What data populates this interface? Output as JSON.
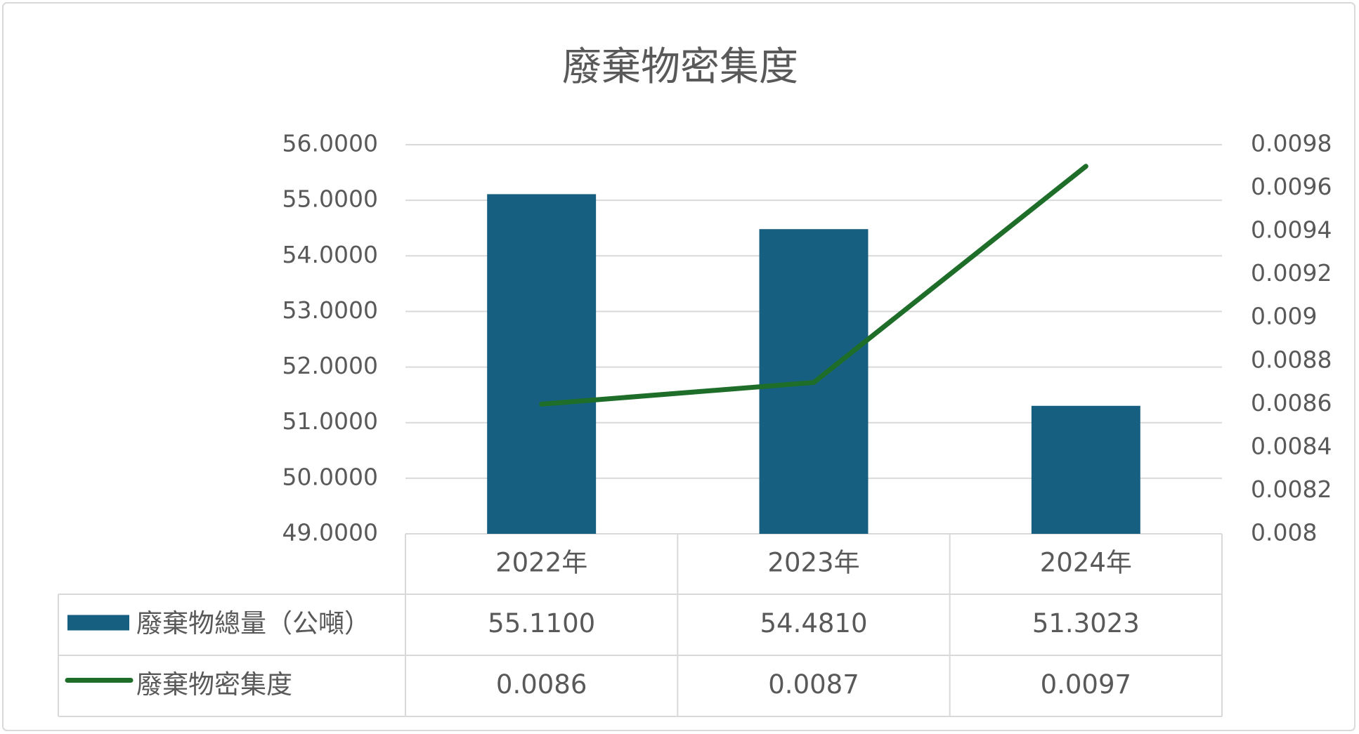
{
  "chart_data": {
    "type": "bar",
    "title": "廢棄物密集度",
    "categories": [
      "2022年",
      "2023年",
      "2024年"
    ],
    "series": [
      {
        "name": "廢棄物總量（公噸）",
        "type": "bar",
        "color": "#175f80",
        "values": [
          55.11,
          54.481,
          51.3023
        ],
        "value_labels": [
          "55.1100",
          "54.4810",
          "51.3023"
        ]
      },
      {
        "name": "廢棄物密集度",
        "type": "line",
        "axis": "y2",
        "color": "#1e6e2a",
        "values": [
          0.0086,
          0.0087,
          0.0097
        ]
      }
    ],
    "ylim": [
      49,
      56
    ],
    "yticks": [
      {
        "value": 49,
        "label": "49.0000"
      },
      {
        "value": 50,
        "label": "50.0000"
      },
      {
        "value": 51,
        "label": "51.0000"
      },
      {
        "value": 52,
        "label": "52.0000"
      },
      {
        "value": 53,
        "label": "53.0000"
      },
      {
        "value": 54,
        "label": "54.0000"
      },
      {
        "value": 55,
        "label": "55.0000"
      },
      {
        "value": 56,
        "label": "56.0000"
      }
    ],
    "y2lim": [
      0.008,
      0.0098
    ],
    "y2ticks": [
      0.008,
      0.0082,
      0.0084,
      0.0086,
      0.0088,
      0.009,
      0.0092,
      0.0094,
      0.0096,
      0.0098
    ],
    "grid": true
  }
}
